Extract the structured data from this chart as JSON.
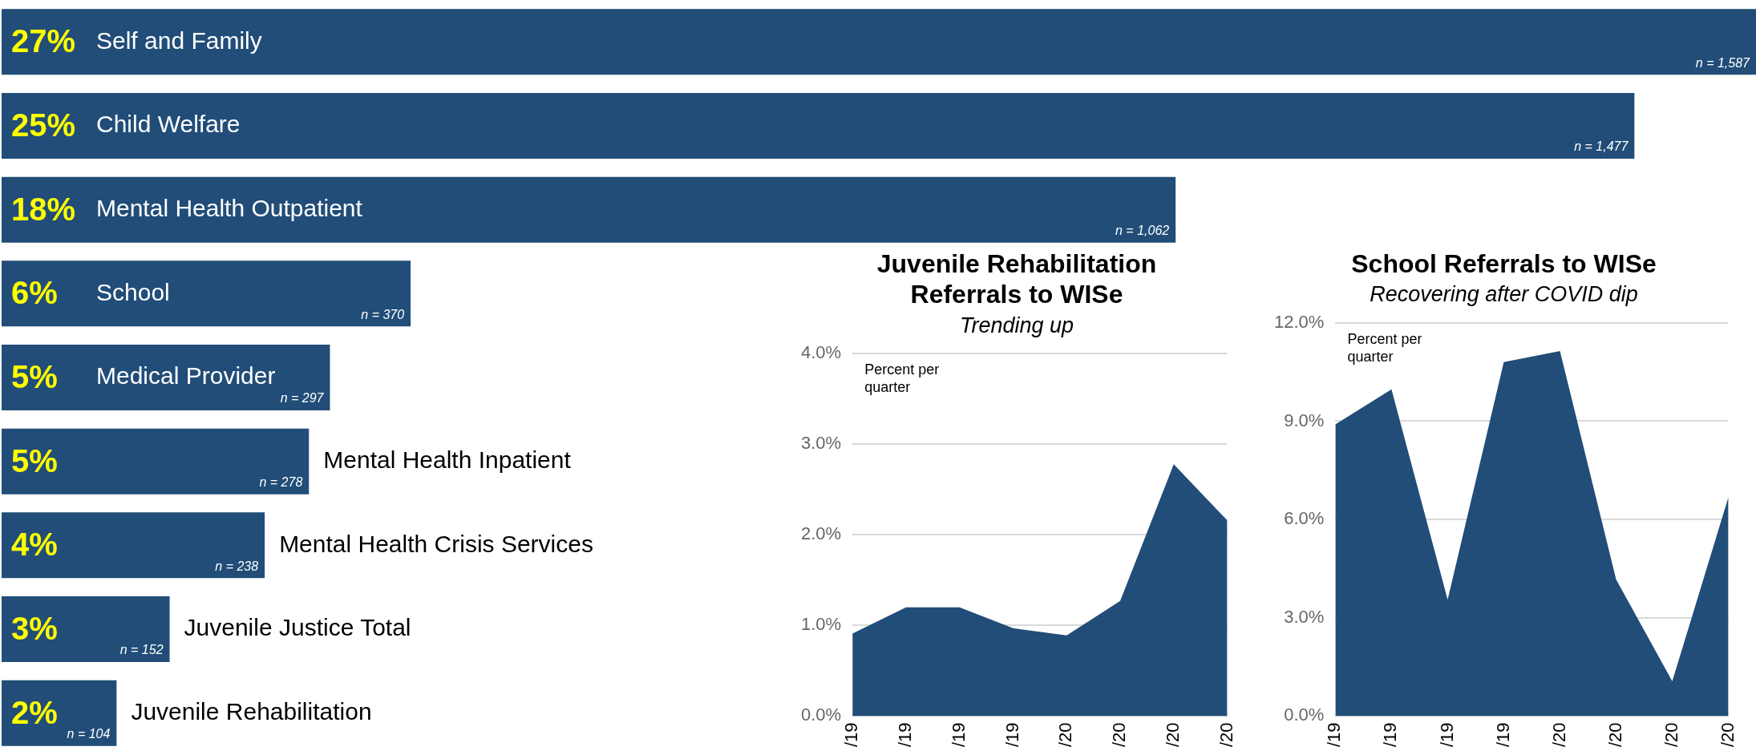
{
  "chart_data": [
    {
      "type": "bar",
      "orientation": "horizontal",
      "categories": [
        "Self and Family",
        "Child Welfare",
        "Mental Health Outpatient",
        "School",
        "Medical Provider",
        "Mental Health Inpatient",
        "Mental Health Crisis Services",
        "Juvenile Justice Total",
        "Juvenile Rehabilitation"
      ],
      "values": [
        1587,
        1477,
        1062,
        370,
        297,
        278,
        238,
        152,
        104
      ],
      "value_labels": [
        "n = 1,587",
        "n = 1,477",
        "n = 1,062",
        "n = 370",
        "n = 297",
        "n = 278",
        "n = 238",
        "n = 152",
        "n = 104"
      ],
      "color": "#214d78",
      "grid": false,
      "legend": false,
      "annotations": [
        "27%",
        "25%",
        "18%",
        "6%",
        "5%",
        "5%",
        "4%",
        "3%",
        "2%"
      ]
    },
    {
      "type": "area",
      "title": "Juvenile Rehabilitation Referrals to WISe",
      "subtitle": "Trending up",
      "categories": [
        "/19",
        "/19",
        "/19",
        "/19",
        "/20",
        "/20",
        "/20",
        "/20"
      ],
      "values": [
        0.91,
        1.2,
        1.2,
        0.97,
        0.89,
        1.27,
        2.78,
        2.16
      ],
      "color": "#214d78",
      "ylim": [
        0,
        4
      ],
      "yticks": [
        {
          "value": 0,
          "label": "0.0%"
        },
        {
          "value": 1,
          "label": "1.0%"
        },
        {
          "value": 2,
          "label": "2.0%"
        },
        {
          "value": 3,
          "label": "3.0%"
        },
        {
          "value": 4,
          "label": "4.0%"
        }
      ],
      "grid": "y",
      "legend": false,
      "annotations": [
        "Percent per quarter"
      ]
    },
    {
      "type": "area",
      "title": "School Referrals to WISe",
      "subtitle": "Recovering after COVID dip",
      "categories": [
        "/19",
        "/19",
        "/19",
        "/19",
        "/20",
        "/20",
        "/20",
        "/20"
      ],
      "values": [
        8.9,
        9.97,
        3.55,
        10.8,
        11.14,
        4.17,
        1.06,
        6.68
      ],
      "color": "#214d78",
      "ylim": [
        0,
        12
      ],
      "yticks": [
        {
          "value": 0,
          "label": "0.0%"
        },
        {
          "value": 3,
          "label": "3.0%"
        },
        {
          "value": 6,
          "label": "6.0%"
        },
        {
          "value": 9,
          "label": "9.0%"
        },
        {
          "value": 12,
          "label": "12.0%"
        }
      ],
      "grid": "y",
      "legend": false,
      "annotations": [
        "Percent per quarter"
      ]
    }
  ]
}
